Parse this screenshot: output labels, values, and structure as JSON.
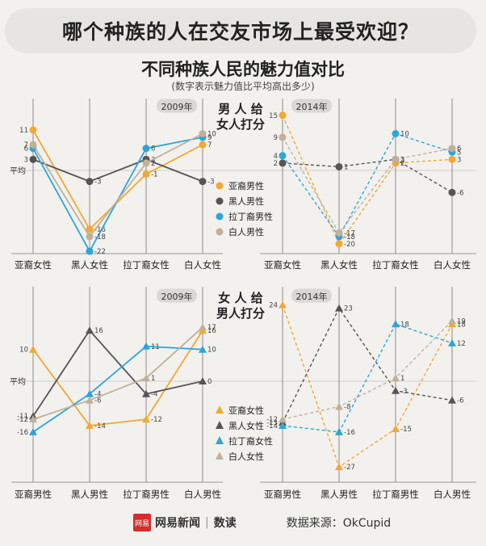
{
  "header": {
    "title": "哪个种族的人在交友市场上最受欢迎？",
    "subtitle": "不同种族人民的魅力值对比",
    "note": "(数字表示魅力值比平均高出多少)"
  },
  "y_axis_label": "平均",
  "footer": {
    "logo_text": "网易",
    "brand": "网易新闻",
    "sep": "|",
    "column": "数读",
    "source": "数据来源：OkCupid"
  },
  "colors": {
    "asian": "#f2a833",
    "black": "#555555",
    "latino": "#2aa6dc",
    "white": "#c2b099"
  },
  "chart_data": [
    {
      "type": "line",
      "panel_title": [
        "男 人 给",
        "女人打分"
      ],
      "legend": [
        "亚裔男性",
        "黑人男性",
        "拉丁裔男性",
        "白人男性"
      ],
      "categories": [
        "亚裔女性",
        "黑人女性",
        "拉丁裔女性",
        "白人女性"
      ],
      "ylim": [
        -24,
        17
      ],
      "charts": [
        {
          "year": "2009年",
          "style": "solid",
          "series": [
            {
              "name": "亚裔男性",
              "values": [
                11,
                -16,
                -1,
                7
              ]
            },
            {
              "name": "黑人男性",
              "values": [
                3,
                -3,
                3,
                -3
              ]
            },
            {
              "name": "拉丁裔男性",
              "values": [
                6,
                -22,
                6,
                9
              ]
            },
            {
              "name": "白人男性",
              "values": [
                7,
                -18,
                2,
                10
              ]
            }
          ]
        },
        {
          "year": "2014年",
          "style": "dashed",
          "series": [
            {
              "name": "亚裔男性",
              "values": [
                15,
                -20,
                2,
                3
              ]
            },
            {
              "name": "黑人男性",
              "values": [
                2,
                1,
                3,
                -6
              ]
            },
            {
              "name": "拉丁裔男性",
              "values": [
                4,
                -18,
                10,
                5
              ]
            },
            {
              "name": "白人男性",
              "values": [
                9,
                -17,
                3,
                6
              ]
            }
          ]
        }
      ]
    },
    {
      "type": "line",
      "panel_title": [
        "女 人 给",
        "男人打分"
      ],
      "legend": [
        "亚裔女性",
        "黑人女性",
        "拉丁裔女性",
        "白人女性"
      ],
      "categories": [
        "亚裔男性",
        "黑人男性",
        "拉丁裔男性",
        "白人男性"
      ],
      "ylim": [
        -30,
        26
      ],
      "charts": [
        {
          "year": "2009年",
          "style": "solid",
          "series": [
            {
              "name": "亚裔女性",
              "values": [
                10,
                -14,
                -12,
                16
              ]
            },
            {
              "name": "黑人女性",
              "values": [
                -11,
                16,
                -4,
                0
              ]
            },
            {
              "name": "拉丁裔女性",
              "values": [
                -16,
                -4,
                11,
                10
              ]
            },
            {
              "name": "白人女性",
              "values": [
                -12,
                -6,
                1,
                17
              ]
            }
          ]
        },
        {
          "year": "2014年",
          "style": "dashed",
          "series": [
            {
              "name": "亚裔女性",
              "values": [
                24,
                -27,
                -15,
                18
              ]
            },
            {
              "name": "黑人女性",
              "values": [
                -13,
                23,
                -3,
                -6
              ]
            },
            {
              "name": "拉丁裔女性",
              "values": [
                -14,
                -16,
                18,
                12
              ]
            },
            {
              "name": "白人女性",
              "values": [
                -12,
                -8,
                1,
                19
              ]
            }
          ]
        }
      ]
    }
  ]
}
